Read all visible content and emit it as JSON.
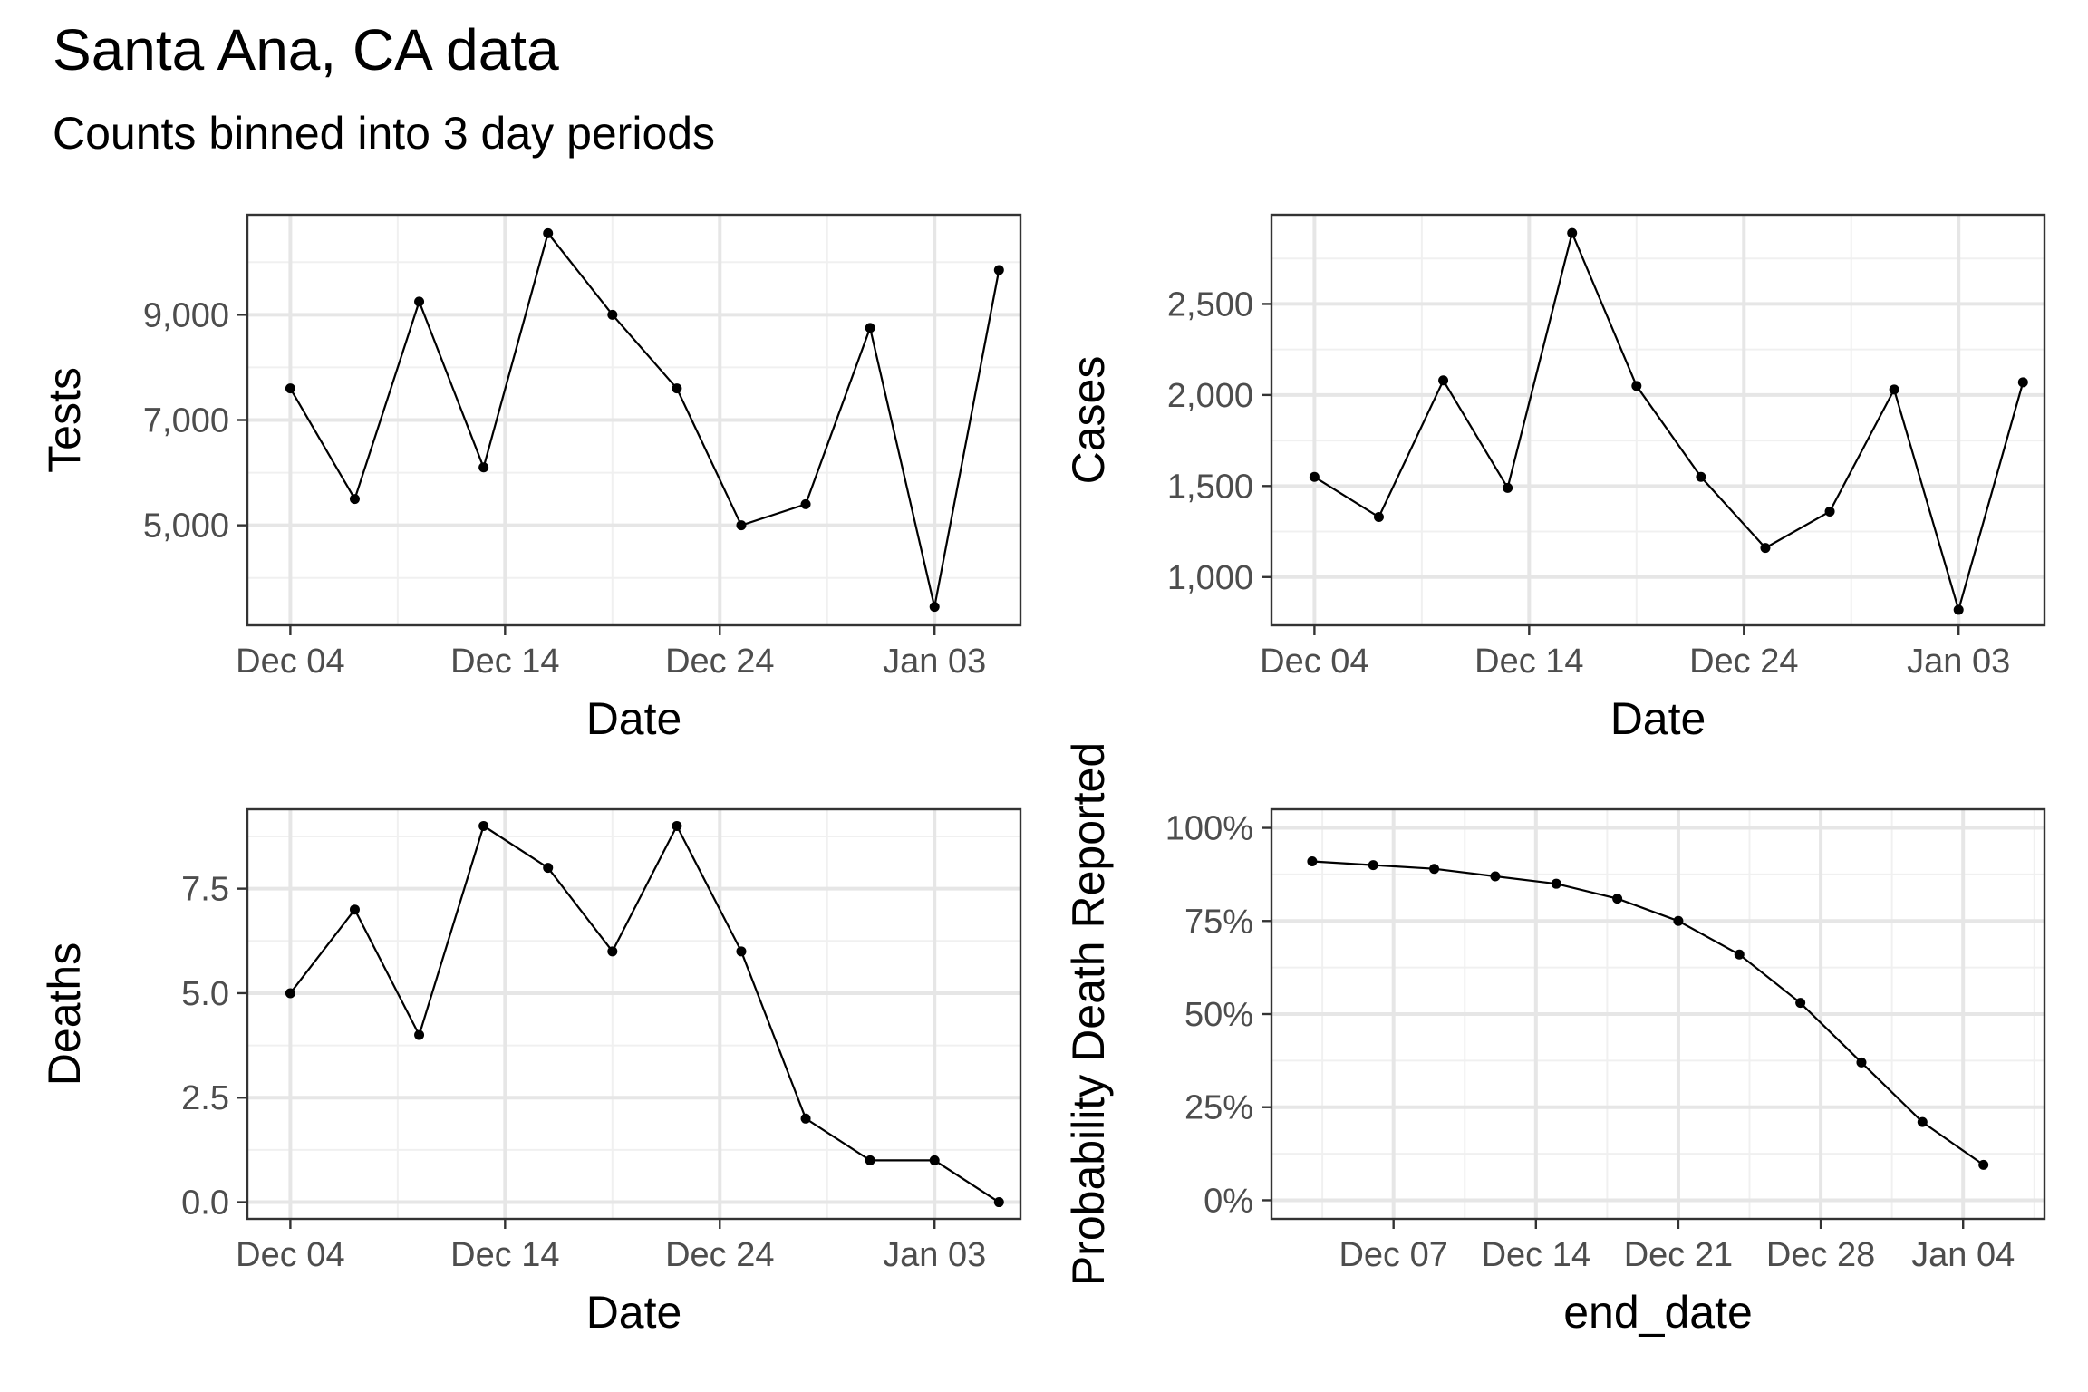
{
  "page": {
    "title": "Santa Ana, CA data",
    "subtitle": "Counts binned into 3 day periods"
  },
  "chart_data": [
    {
      "type": "line",
      "panel": "top-left",
      "xlabel": "Date",
      "ylabel": "Tests",
      "x": [
        "2020-12-04",
        "2020-12-07",
        "2020-12-10",
        "2020-12-13",
        "2020-12-16",
        "2020-12-19",
        "2020-12-22",
        "2020-12-25",
        "2020-12-28",
        "2020-12-31",
        "2021-01-03",
        "2021-01-06"
      ],
      "values": [
        7600,
        5500,
        9250,
        6100,
        10550,
        9000,
        7600,
        5000,
        5400,
        8750,
        3450,
        9850
      ],
      "xlim": [
        "2020-12-02",
        "2021-01-07"
      ],
      "ylim": [
        3100,
        10900
      ],
      "xticks": [
        {
          "date": "2020-12-04",
          "label": "Dec 04"
        },
        {
          "date": "2020-12-14",
          "label": "Dec 14"
        },
        {
          "date": "2020-12-24",
          "label": "Dec 24"
        },
        {
          "date": "2021-01-03",
          "label": "Jan 03"
        }
      ],
      "yticks": [
        {
          "value": 5000,
          "label": "5,000"
        },
        {
          "value": 7000,
          "label": "7,000"
        },
        {
          "value": 9000,
          "label": "9,000"
        }
      ],
      "yminor": [
        4000,
        6000,
        8000,
        10000
      ],
      "grid": true
    },
    {
      "type": "line",
      "panel": "top-right",
      "xlabel": "Date",
      "ylabel": "Cases",
      "x": [
        "2020-12-04",
        "2020-12-07",
        "2020-12-10",
        "2020-12-13",
        "2020-12-16",
        "2020-12-19",
        "2020-12-22",
        "2020-12-25",
        "2020-12-28",
        "2020-12-31",
        "2021-01-03",
        "2021-01-06"
      ],
      "values": [
        1550,
        1330,
        2080,
        1490,
        2890,
        2050,
        1550,
        1160,
        1360,
        2030,
        820,
        2070
      ],
      "xlim": [
        "2020-12-02",
        "2021-01-07"
      ],
      "ylim": [
        735,
        2990
      ],
      "xticks": [
        {
          "date": "2020-12-04",
          "label": "Dec 04"
        },
        {
          "date": "2020-12-14",
          "label": "Dec 14"
        },
        {
          "date": "2020-12-24",
          "label": "Dec 24"
        },
        {
          "date": "2021-01-03",
          "label": "Jan 03"
        }
      ],
      "yticks": [
        {
          "value": 1000,
          "label": "1,000"
        },
        {
          "value": 1500,
          "label": "1,500"
        },
        {
          "value": 2000,
          "label": "2,000"
        },
        {
          "value": 2500,
          "label": "2,500"
        }
      ],
      "yminor": [
        1250,
        1750,
        2250,
        2750
      ],
      "grid": true
    },
    {
      "type": "line",
      "panel": "bottom-left",
      "xlabel": "Date",
      "ylabel": "Deaths",
      "x": [
        "2020-12-04",
        "2020-12-07",
        "2020-12-10",
        "2020-12-13",
        "2020-12-16",
        "2020-12-19",
        "2020-12-22",
        "2020-12-25",
        "2020-12-28",
        "2020-12-31",
        "2021-01-03",
        "2021-01-06"
      ],
      "values": [
        5,
        7,
        4,
        9,
        8,
        6,
        9,
        6,
        2,
        1,
        1,
        0
      ],
      "xlim": [
        "2020-12-02",
        "2021-01-07"
      ],
      "ylim": [
        -0.4,
        9.4
      ],
      "xticks": [
        {
          "date": "2020-12-04",
          "label": "Dec 04"
        },
        {
          "date": "2020-12-14",
          "label": "Dec 14"
        },
        {
          "date": "2020-12-24",
          "label": "Dec 24"
        },
        {
          "date": "2021-01-03",
          "label": "Jan 03"
        }
      ],
      "yticks": [
        {
          "value": 0,
          "label": "0.0"
        },
        {
          "value": 2.5,
          "label": "2.5"
        },
        {
          "value": 5,
          "label": "5.0"
        },
        {
          "value": 7.5,
          "label": "7.5"
        }
      ],
      "yminor": [
        1.25,
        3.75,
        6.25,
        8.75
      ],
      "grid": true
    },
    {
      "type": "line",
      "panel": "bottom-right",
      "xlabel": "end_date",
      "ylabel": "Probability Death Reported",
      "x": [
        "2020-12-03",
        "2020-12-06",
        "2020-12-09",
        "2020-12-12",
        "2020-12-15",
        "2020-12-18",
        "2020-12-21",
        "2020-12-24",
        "2020-12-27",
        "2020-12-30",
        "2021-01-02",
        "2021-01-05"
      ],
      "values": [
        0.91,
        0.9,
        0.89,
        0.87,
        0.85,
        0.81,
        0.75,
        0.66,
        0.53,
        0.37,
        0.21,
        0.095
      ],
      "xlim": [
        "2020-12-01",
        "2021-01-08"
      ],
      "ylim": [
        -0.05,
        1.05
      ],
      "xticks": [
        {
          "date": "2020-12-07",
          "label": "Dec 07"
        },
        {
          "date": "2020-12-14",
          "label": "Dec 14"
        },
        {
          "date": "2020-12-21",
          "label": "Dec 21"
        },
        {
          "date": "2020-12-28",
          "label": "Dec 28"
        },
        {
          "date": "2021-01-04",
          "label": "Jan 04"
        }
      ],
      "yticks": [
        {
          "value": 0,
          "label": "0%"
        },
        {
          "value": 0.25,
          "label": "25%"
        },
        {
          "value": 0.5,
          "label": "50%"
        },
        {
          "value": 0.75,
          "label": "75%"
        },
        {
          "value": 1.0,
          "label": "100%"
        }
      ],
      "yminor": [
        0.125,
        0.375,
        0.625,
        0.875
      ],
      "grid": true
    }
  ]
}
